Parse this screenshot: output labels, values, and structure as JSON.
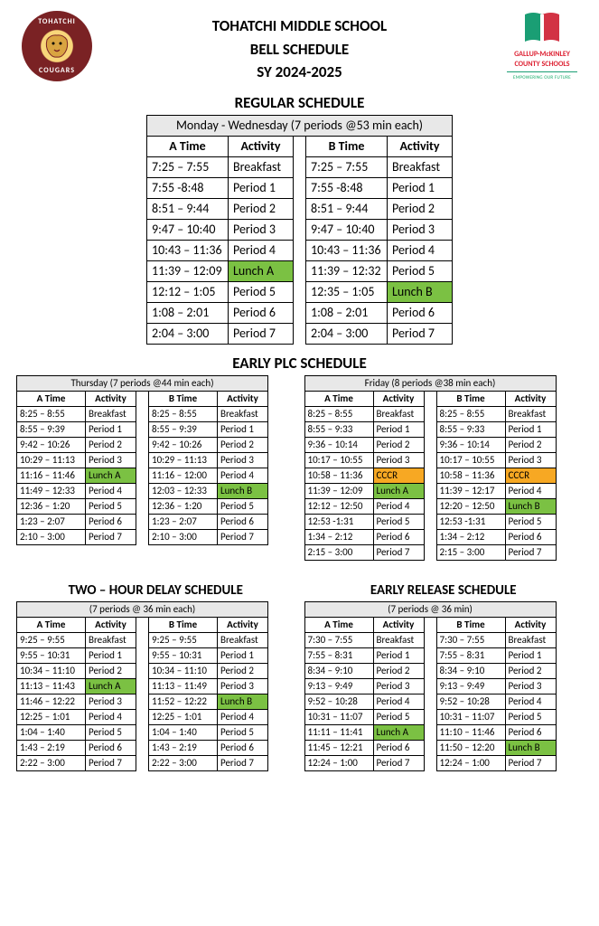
{
  "header": {
    "line1": "TOHATCHI MIDDLE SCHOOL",
    "line2": "BELL SCHEDULE",
    "line3": "SY 2024-2025",
    "cougar_top": "TOHATCHI",
    "cougar_bot": "COUGARS",
    "district_line1": "GALLUP-McKINLEY",
    "district_line2": "COUNTY SCHOOLS",
    "district_tag": "EMPOWERING OUR FUTURE"
  },
  "colors": {
    "lunch": "#7bc143",
    "cccr": "#f7a823"
  },
  "regular": {
    "title": "REGULAR SCHEDULE",
    "caption": "Monday - Wednesday (7 periods @53 min each)",
    "cols": [
      "A Time",
      "Activity",
      "B Time",
      "Activity"
    ],
    "rows": [
      [
        "7:25 – 7:55",
        "Breakfast",
        "",
        "7:25 – 7:55",
        "Breakfast",
        ""
      ],
      [
        "7:55 -8:48",
        "Period 1",
        "",
        "7:55 -8:48",
        "Period 1",
        ""
      ],
      [
        "8:51 – 9:44",
        "Period 2",
        "",
        "8:51 – 9:44",
        "Period 2",
        ""
      ],
      [
        "9:47 – 10:40",
        "Period 3",
        "",
        "9:47 – 10:40",
        "Period 3",
        ""
      ],
      [
        "10:43 – 11:36",
        "Period 4",
        "",
        "10:43 – 11:36",
        "Period 4",
        ""
      ],
      [
        "11:39 – 12:09",
        "Lunch A",
        "g",
        "11:39 – 12:32",
        "Period 5",
        ""
      ],
      [
        "12:12 – 1:05",
        "Period 5",
        "",
        "12:35 – 1:05",
        "Lunch B",
        "g"
      ],
      [
        "1:08 – 2:01",
        "Period 6",
        "",
        "1:08 – 2:01",
        "Period 6",
        ""
      ],
      [
        "2:04 – 3:00",
        "Period 7",
        "",
        "2:04 – 3:00",
        "Period 7",
        ""
      ]
    ]
  },
  "plc": {
    "title": "EARLY PLC SCHEDULE",
    "left_caption": "Thursday (7 periods @44 min each)",
    "right_caption": "Friday (8 periods @38 min each)",
    "cols": [
      "A Time",
      "Activity",
      "B Time",
      "Activity"
    ],
    "thursday": [
      [
        "8:25 – 8:55",
        "Breakfast",
        "",
        "8:25 – 8:55",
        "Breakfast",
        ""
      ],
      [
        "8:55 – 9:39",
        "Period 1",
        "",
        "8:55 – 9:39",
        "Period 1",
        ""
      ],
      [
        "9:42 – 10:26",
        "Period 2",
        "",
        "9:42 – 10:26",
        "Period 2",
        ""
      ],
      [
        "10:29 – 11:13",
        "Period 3",
        "",
        "10:29 – 11:13",
        "Period 3",
        ""
      ],
      [
        "11:16 – 11:46",
        "Lunch A",
        "g",
        "11:16 – 12:00",
        "Period 4",
        ""
      ],
      [
        "11:49 – 12:33",
        "Period 4",
        "",
        "12:03 – 12:33",
        "Lunch B",
        "g"
      ],
      [
        "12:36 – 1:20",
        "Period 5",
        "",
        "12:36 – 1:20",
        "Period 5",
        ""
      ],
      [
        "1:23 – 2:07",
        "Period 6",
        "",
        "1:23 – 2:07",
        "Period 6",
        ""
      ],
      [
        "2:10 – 3:00",
        "Period 7",
        "",
        "2:10 – 3:00",
        "Period 7",
        ""
      ]
    ],
    "friday": [
      [
        "8:25 – 8:55",
        "Breakfast",
        "",
        "8:25 – 8:55",
        "Breakfast",
        ""
      ],
      [
        "8:55 – 9:33",
        "Period 1",
        "",
        "8:55 – 9:33",
        "Period 1",
        ""
      ],
      [
        "9:36 – 10:14",
        "Period 2",
        "",
        "9:36 – 10:14",
        "Period 2",
        ""
      ],
      [
        "10:17 – 10:55",
        "Period 3",
        "",
        "10:17 – 10:55",
        "Period 3",
        ""
      ],
      [
        "10:58 – 11:36",
        "CCCR",
        "o",
        "10:58 – 11:36",
        "CCCR",
        "o"
      ],
      [
        "11:39 – 12:09",
        "Lunch A",
        "g",
        "11:39 – 12:17",
        "Period 4",
        ""
      ],
      [
        "12:12 – 12:50",
        "Period 4",
        "",
        "12:20 – 12:50",
        "Lunch B",
        "g"
      ],
      [
        "12:53 -1:31",
        "Period 5",
        "",
        "12:53 -1:31",
        "Period 5",
        ""
      ],
      [
        "1:34 – 2:12",
        "Period 6",
        "",
        "1:34 – 2:12",
        "Period 6",
        ""
      ],
      [
        "2:15 – 3:00",
        "Period 7",
        "",
        "2:15 – 3:00",
        "Period 7",
        ""
      ]
    ]
  },
  "delay": {
    "title": "TWO – HOUR DELAY SCHEDULE",
    "caption": "(7 periods @ 36 min each)",
    "cols": [
      "A Time",
      "Activity",
      "B Time",
      "Activity"
    ],
    "rows": [
      [
        "9:25 – 9:55",
        "Breakfast",
        "",
        "9:25 – 9:55",
        "Breakfast",
        ""
      ],
      [
        "9:55 – 10:31",
        "Period 1",
        "",
        "9:55 – 10:31",
        "Period 1",
        ""
      ],
      [
        "10:34 – 11:10",
        "Period 2",
        "",
        "10:34 – 11:10",
        "Period 2",
        ""
      ],
      [
        "11:13 – 11:43",
        "Lunch A",
        "g",
        "11:13 – 11:49",
        "Period 3",
        ""
      ],
      [
        "11:46 – 12:22",
        "Period 3",
        "",
        "11:52 – 12:22",
        "Lunch B",
        "g"
      ],
      [
        "12:25 – 1:01",
        "Period 4",
        "",
        "12:25 – 1:01",
        "Period 4",
        ""
      ],
      [
        "1:04 – 1:40",
        "Period 5",
        "",
        "1:04 – 1:40",
        "Period 5",
        ""
      ],
      [
        "1:43 – 2:19",
        "Period 6",
        "",
        "1:43 – 2:19",
        "Period 6",
        ""
      ],
      [
        "2:22 – 3:00",
        "Period 7",
        "",
        "2:22 – 3:00",
        "Period 7",
        ""
      ]
    ]
  },
  "release": {
    "title": "EARLY RELEASE SCHEDULE",
    "caption": "(7 periods @ 36 min)",
    "cols": [
      "A Time",
      "Activity",
      "B Time",
      "Activity"
    ],
    "rows": [
      [
        "7:30 – 7:55",
        "Breakfast",
        "",
        "7:30 – 7:55",
        "Breakfast",
        ""
      ],
      [
        "7:55 – 8:31",
        "Period 1",
        "",
        "7:55 – 8:31",
        "Period 1",
        ""
      ],
      [
        "8:34 – 9:10",
        "Period 2",
        "",
        "8:34 – 9:10",
        "Period 2",
        ""
      ],
      [
        "9:13 – 9:49",
        "Period 3",
        "",
        "9:13 – 9:49",
        "Period 3",
        ""
      ],
      [
        "9:52 – 10:28",
        "Period 4",
        "",
        "9:52 – 10:28",
        "Period 4",
        ""
      ],
      [
        "10:31 – 11:07",
        "Period 5",
        "",
        "10:31 – 11:07",
        "Period 5",
        ""
      ],
      [
        "11:11 – 11:41",
        "Lunch A",
        "g",
        "11:10 – 11:46",
        "Period 6",
        ""
      ],
      [
        "11:45 – 12:21",
        "Period 6",
        "",
        "11:50 – 12:20",
        "Lunch B",
        "g"
      ],
      [
        "12:24 – 1:00",
        "Period 7",
        "",
        "12:24 – 1:00",
        "Period 7",
        ""
      ]
    ]
  }
}
